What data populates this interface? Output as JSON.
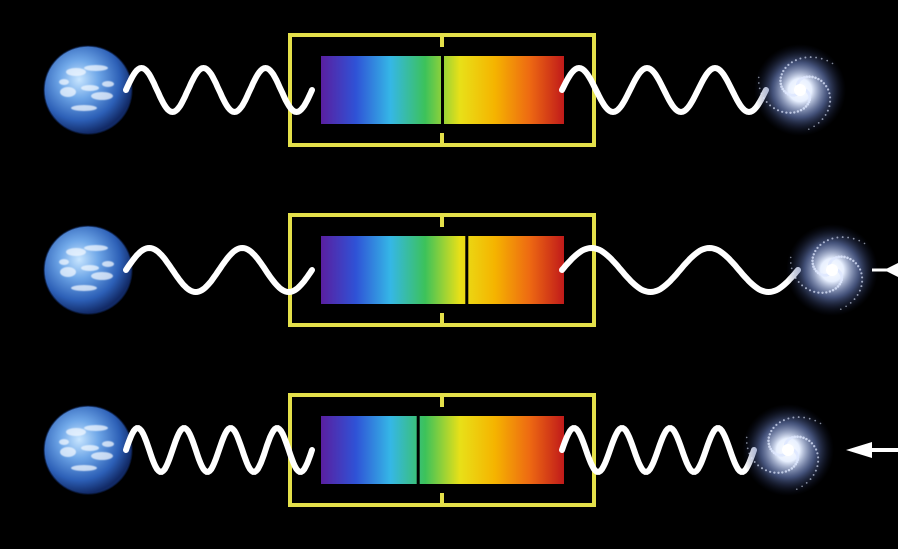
{
  "diagram": {
    "background": "#000000",
    "frame_color": "#e4e04a",
    "wave_color": "#ffffff",
    "rows": [
      {
        "id": "row-at-rest",
        "galaxy_motion": "none",
        "arrow": "none",
        "spectral_line_fraction": 0.5,
        "wave_cycles_left": 3,
        "wave_cycles_right": 3
      },
      {
        "id": "row-receding",
        "galaxy_motion": "away",
        "arrow": "right",
        "spectral_line_fraction": 0.6,
        "wave_cycles_left": 2,
        "wave_cycles_right": 2
      },
      {
        "id": "row-approaching",
        "galaxy_motion": "toward",
        "arrow": "left",
        "spectral_line_fraction": 0.4,
        "wave_cycles_left": 4,
        "wave_cycles_right": 4
      }
    ],
    "spectrum_colors": [
      "#5a1fa0",
      "#2f52d6",
      "#35b7e6",
      "#3cc25a",
      "#e8e018",
      "#f5b400",
      "#ee6a12",
      "#c01a1a"
    ],
    "icons": {
      "earth": "earth-icon",
      "galaxy": "spiral-galaxy-icon",
      "arrow": "motion-arrow-icon"
    }
  }
}
